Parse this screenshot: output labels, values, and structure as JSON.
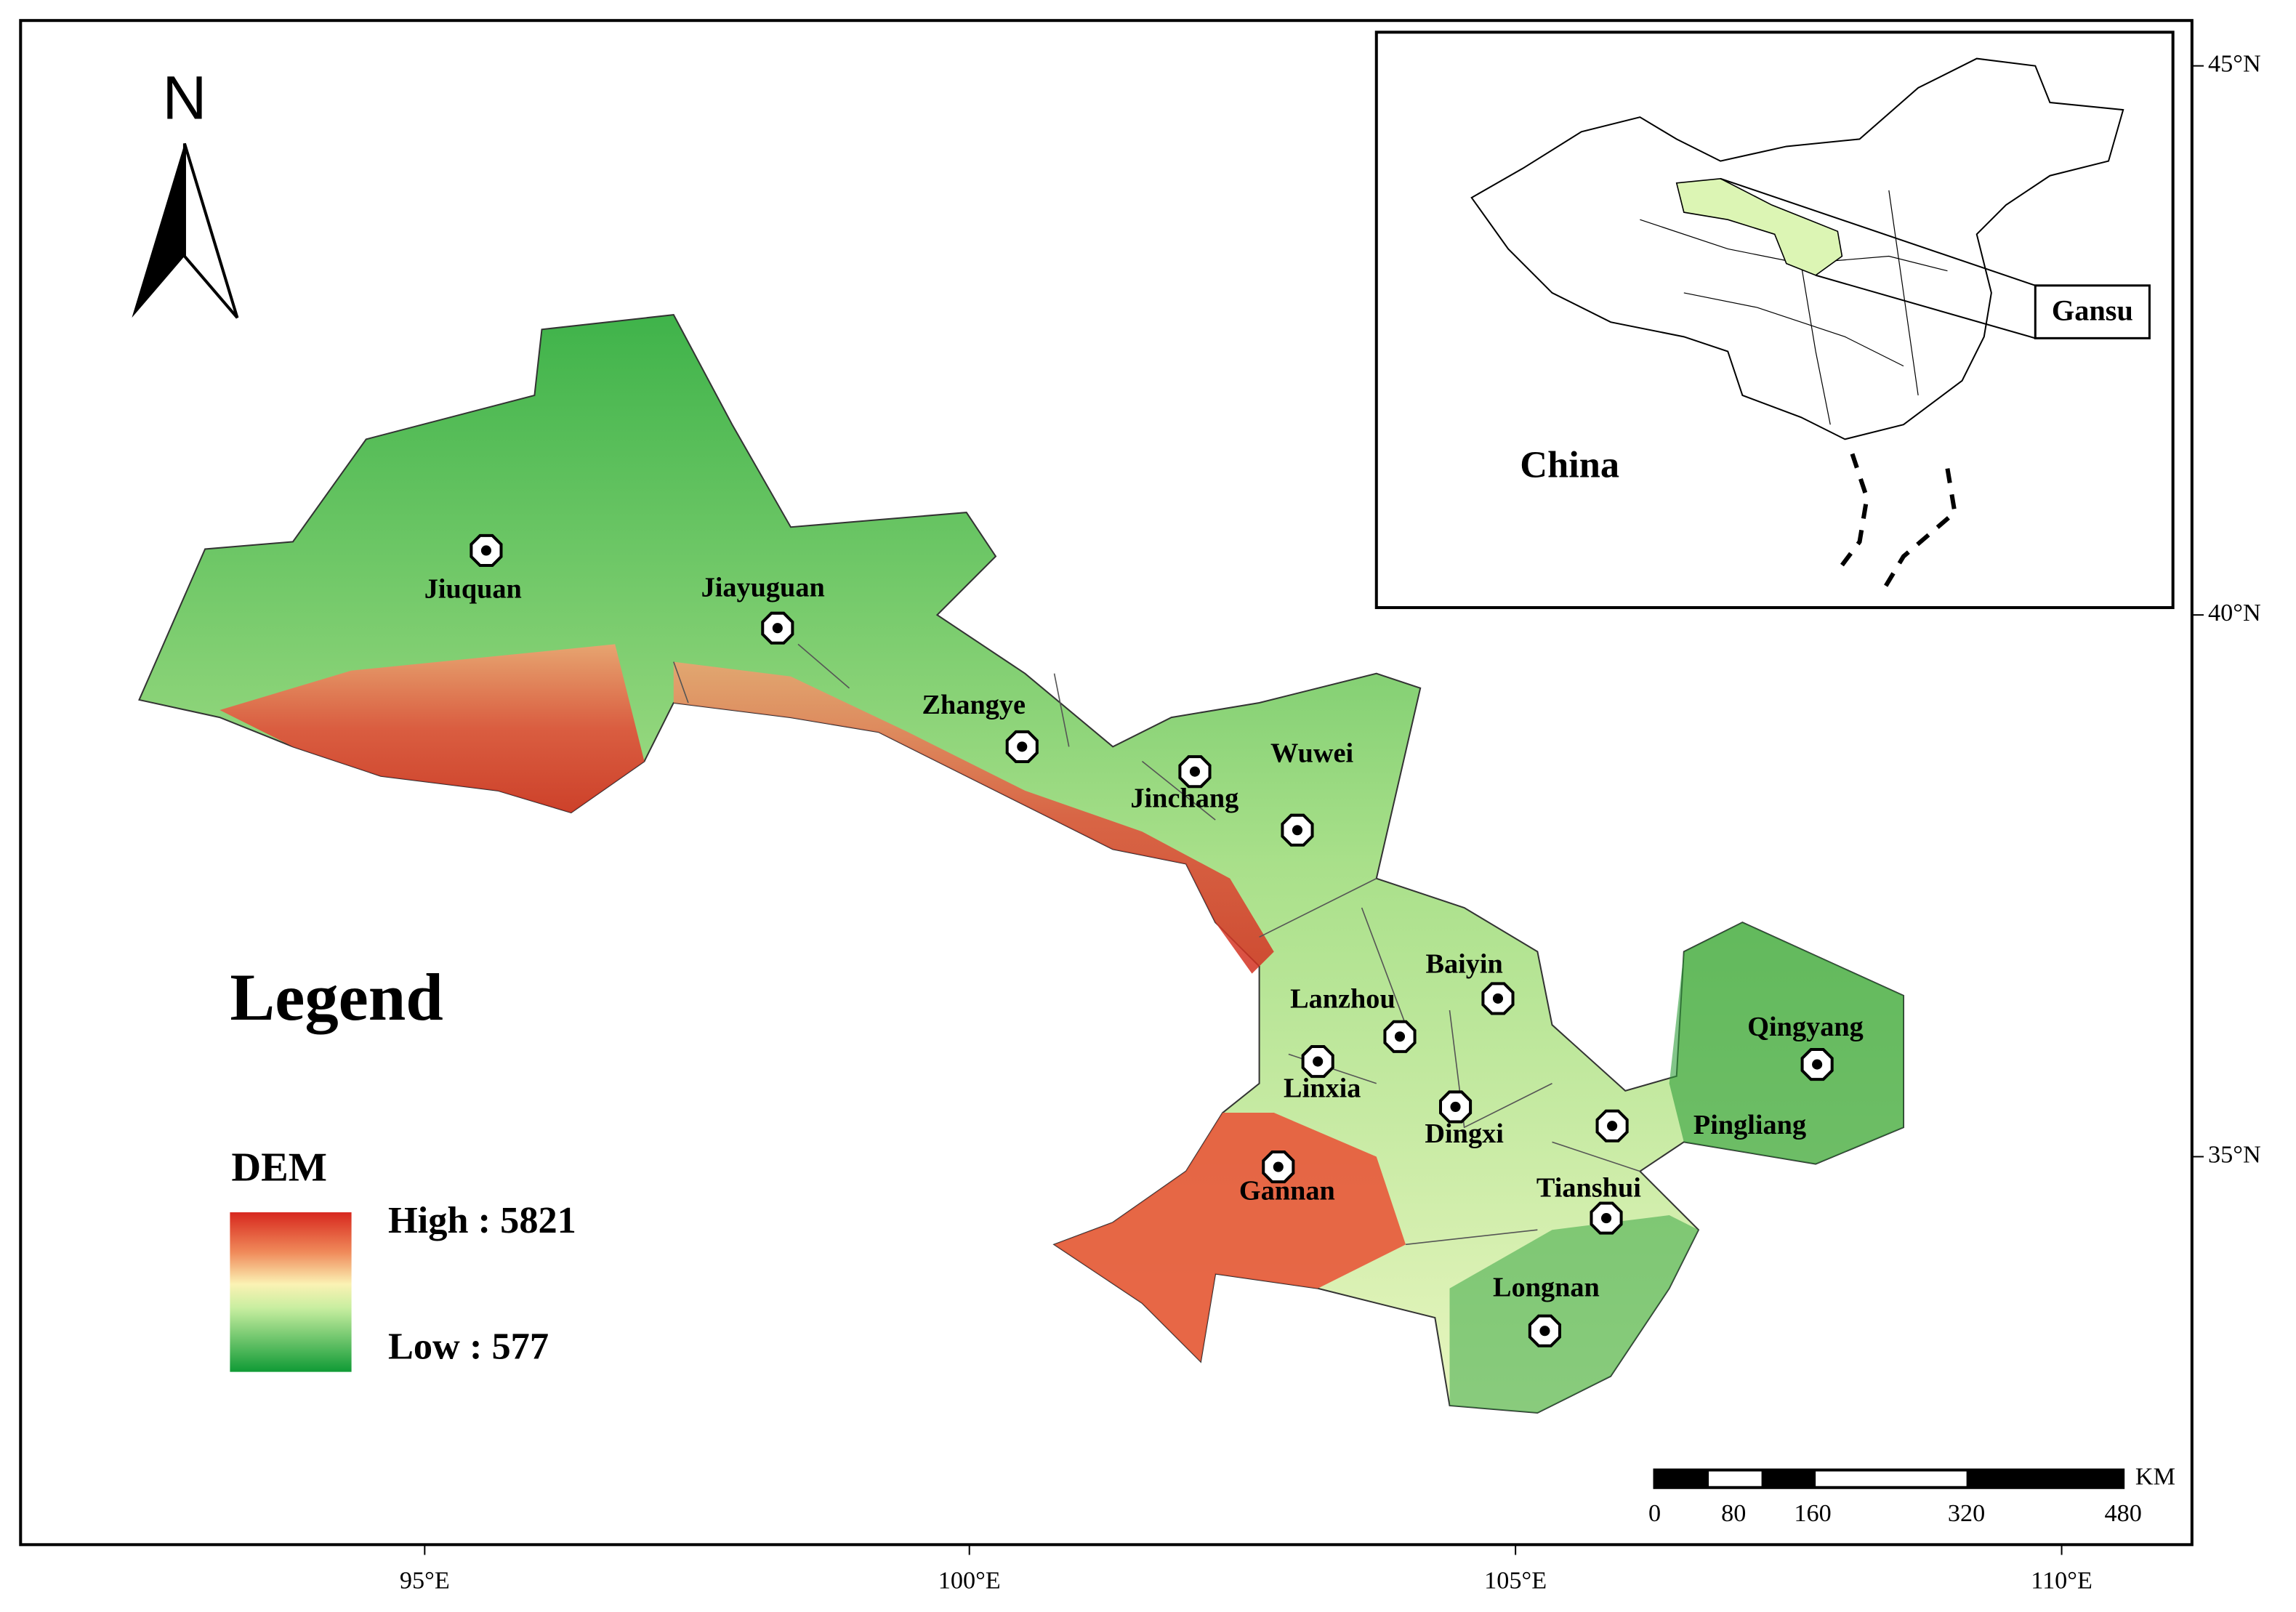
{
  "north": "N",
  "legend": {
    "title": "Legend",
    "layer": "DEM",
    "high": "High : 5821",
    "low": "Low : 577"
  },
  "cities": [
    "Jiuquan",
    "Jiayuguan",
    "Zhangye",
    "Wuwei",
    "Jinchang",
    "Baiyin",
    "Lanzhou",
    "Linxia",
    "Dingxi",
    "Qingyang",
    "Pingliang",
    "Gannan",
    "Tianshui",
    "Longnan"
  ],
  "inset": {
    "country": "China",
    "province": "Gansu"
  },
  "scale_bar": {
    "unit": "KM",
    "labels": [
      "0",
      "80",
      "160",
      "320",
      "480"
    ]
  },
  "longitude_labels": [
    "95°E",
    "100°E",
    "105°E",
    "110°E"
  ],
  "latitude_labels": [
    "45°N",
    "40°N",
    "35°N"
  ]
}
